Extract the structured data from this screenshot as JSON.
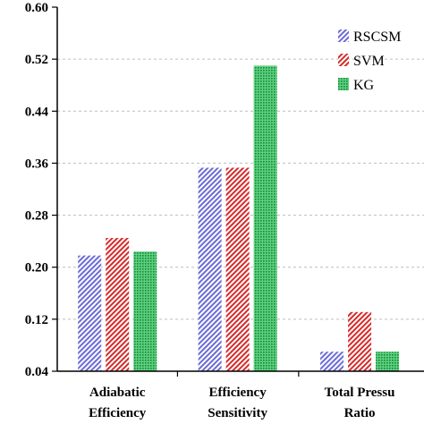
{
  "chart_data": {
    "type": "bar",
    "categories": [
      [
        "Adiabatic",
        "Efficiency"
      ],
      [
        "Efficiency",
        "Sensitivity"
      ],
      [
        "Total Pressu",
        "Ratio"
      ]
    ],
    "series": [
      {
        "name": "RSCSM",
        "values": [
          0.218,
          0.353,
          0.07
        ],
        "color": "#6b6bd6",
        "pattern": "diagonal-hatch"
      },
      {
        "name": "SVM",
        "values": [
          0.245,
          0.353,
          0.131
        ],
        "color": "#d62a2a",
        "pattern": "diagonal-hatch"
      },
      {
        "name": "KG",
        "values": [
          0.224,
          0.51,
          0.07
        ],
        "color": "#22b14c",
        "pattern": "dotted"
      }
    ],
    "yticks": [
      "0.04",
      "0.12",
      "0.20",
      "0.28",
      "0.36",
      "0.44",
      "0.52",
      "0.60"
    ],
    "ylim": [
      0.04,
      0.6
    ],
    "grid": "horizontal-dashed",
    "legend_position": "top-right",
    "title": "",
    "xlabel": "",
    "ylabel": ""
  }
}
